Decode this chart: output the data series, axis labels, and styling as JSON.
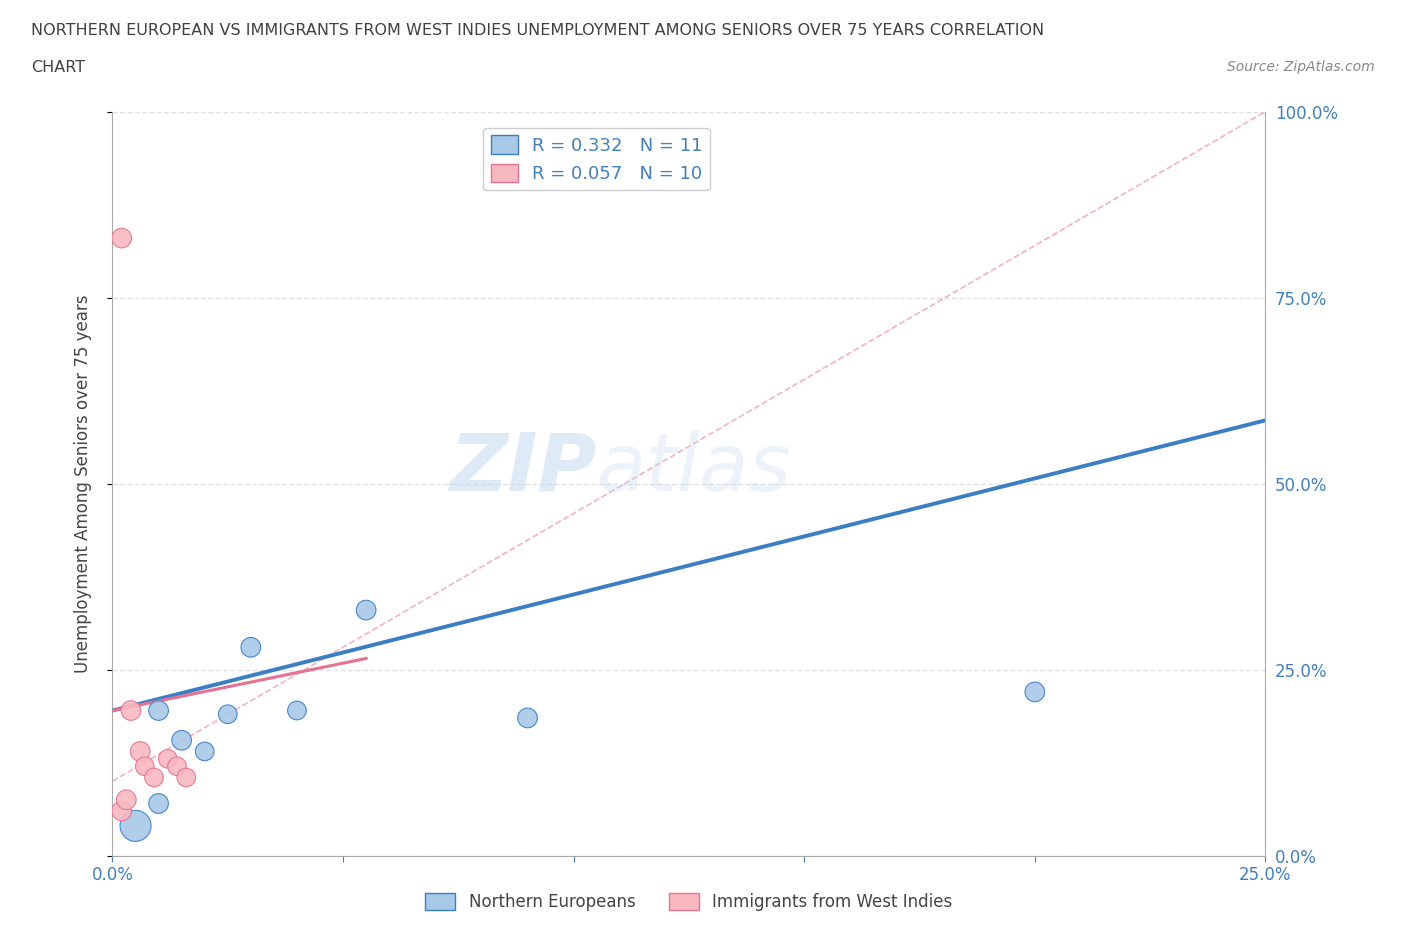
{
  "title_line1": "NORTHERN EUROPEAN VS IMMIGRANTS FROM WEST INDIES UNEMPLOYMENT AMONG SENIORS OVER 75 YEARS CORRELATION",
  "title_line2": "CHART",
  "source": "Source: ZipAtlas.com",
  "ylabel": "Unemployment Among Seniors over 75 years",
  "xlim": [
    0,
    0.25
  ],
  "ylim": [
    0,
    1.0
  ],
  "yticks": [
    0,
    0.25,
    0.5,
    0.75,
    1.0
  ],
  "ytick_labels": [
    "0.0%",
    "25.0%",
    "50.0%",
    "75.0%",
    "100.0%"
  ],
  "xticks": [
    0,
    0.05,
    0.1,
    0.15,
    0.2,
    0.25
  ],
  "xtick_labels": [
    "0.0%",
    "",
    "",
    "",
    "",
    "25.0%"
  ],
  "blue_R": 0.332,
  "blue_N": 11,
  "pink_R": 0.057,
  "pink_N": 10,
  "blue_scatter_x": [
    0.005,
    0.01,
    0.01,
    0.015,
    0.02,
    0.025,
    0.03,
    0.04,
    0.055,
    0.2,
    0.09
  ],
  "blue_scatter_y": [
    0.04,
    0.07,
    0.195,
    0.155,
    0.14,
    0.19,
    0.28,
    0.195,
    0.33,
    0.22,
    0.185
  ],
  "blue_scatter_size": [
    500,
    200,
    200,
    200,
    180,
    180,
    200,
    180,
    200,
    200,
    200
  ],
  "pink_scatter_x": [
    0.002,
    0.004,
    0.006,
    0.007,
    0.009,
    0.012,
    0.014,
    0.016,
    0.002,
    0.003
  ],
  "pink_scatter_y": [
    0.83,
    0.195,
    0.14,
    0.12,
    0.105,
    0.13,
    0.12,
    0.105,
    0.06,
    0.075
  ],
  "pink_scatter_size": [
    200,
    200,
    200,
    180,
    180,
    180,
    180,
    180,
    200,
    200
  ],
  "blue_line_x": [
    0,
    0.25
  ],
  "blue_line_y": [
    0.195,
    0.585
  ],
  "pink_line_x": [
    0,
    0.055
  ],
  "pink_line_y": [
    0.195,
    0.265
  ],
  "ref_line_x": [
    0,
    0.25
  ],
  "ref_line_y": [
    0.1,
    1.0
  ],
  "blue_color": "#A8C8E8",
  "blue_line_color": "#3A7EC6",
  "pink_color": "#F8B8C0",
  "pink_line_color": "#E87090",
  "ref_line_color": "#F0A0B0",
  "watermark_zip": "ZIP",
  "watermark_atlas": "atlas",
  "background_color": "#FFFFFF",
  "legend_label_blue": "Northern Europeans",
  "legend_label_pink": "Immigrants from West Indies",
  "grid_color": "#E0E0E0",
  "tick_color": "#4080C0",
  "title_color": "#404040",
  "source_color": "#888888"
}
